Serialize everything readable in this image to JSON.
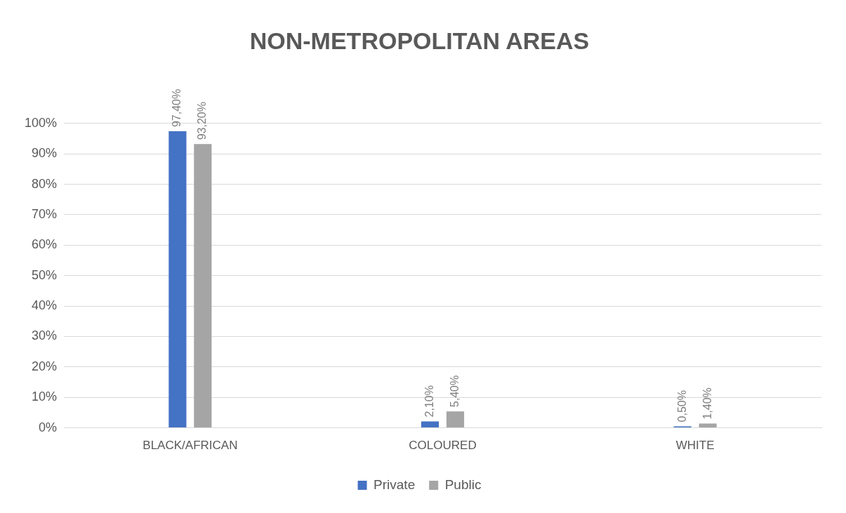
{
  "chart_data": {
    "type": "bar",
    "title": "NON-METROPOLITAN AREAS",
    "categories": [
      "BLACK/AFRICAN",
      "COLOURED",
      "WHITE"
    ],
    "series": [
      {
        "name": "Private",
        "color": "#4472c4",
        "values": [
          97.4,
          2.1,
          0.5
        ],
        "value_labels": [
          "97,40%",
          "2,10%",
          "0,50%"
        ]
      },
      {
        "name": "Public",
        "color": "#a5a5a5",
        "values": [
          93.2,
          5.4,
          1.4
        ],
        "value_labels": [
          "93,20%",
          "5,40%",
          "1,40%"
        ]
      }
    ],
    "ylim": [
      0,
      100
    ],
    "yticks": [
      {
        "value": 0,
        "label": "0%"
      },
      {
        "value": 10,
        "label": "10%"
      },
      {
        "value": 20,
        "label": "20%"
      },
      {
        "value": 30,
        "label": "30%"
      },
      {
        "value": 40,
        "label": "40%"
      },
      {
        "value": 50,
        "label": "50%"
      },
      {
        "value": 60,
        "label": "60%"
      },
      {
        "value": 70,
        "label": "70%"
      },
      {
        "value": 80,
        "label": "80%"
      },
      {
        "value": 90,
        "label": "90%"
      },
      {
        "value": 100,
        "label": "100%"
      }
    ],
    "grid": "y",
    "legend": "bottom"
  }
}
